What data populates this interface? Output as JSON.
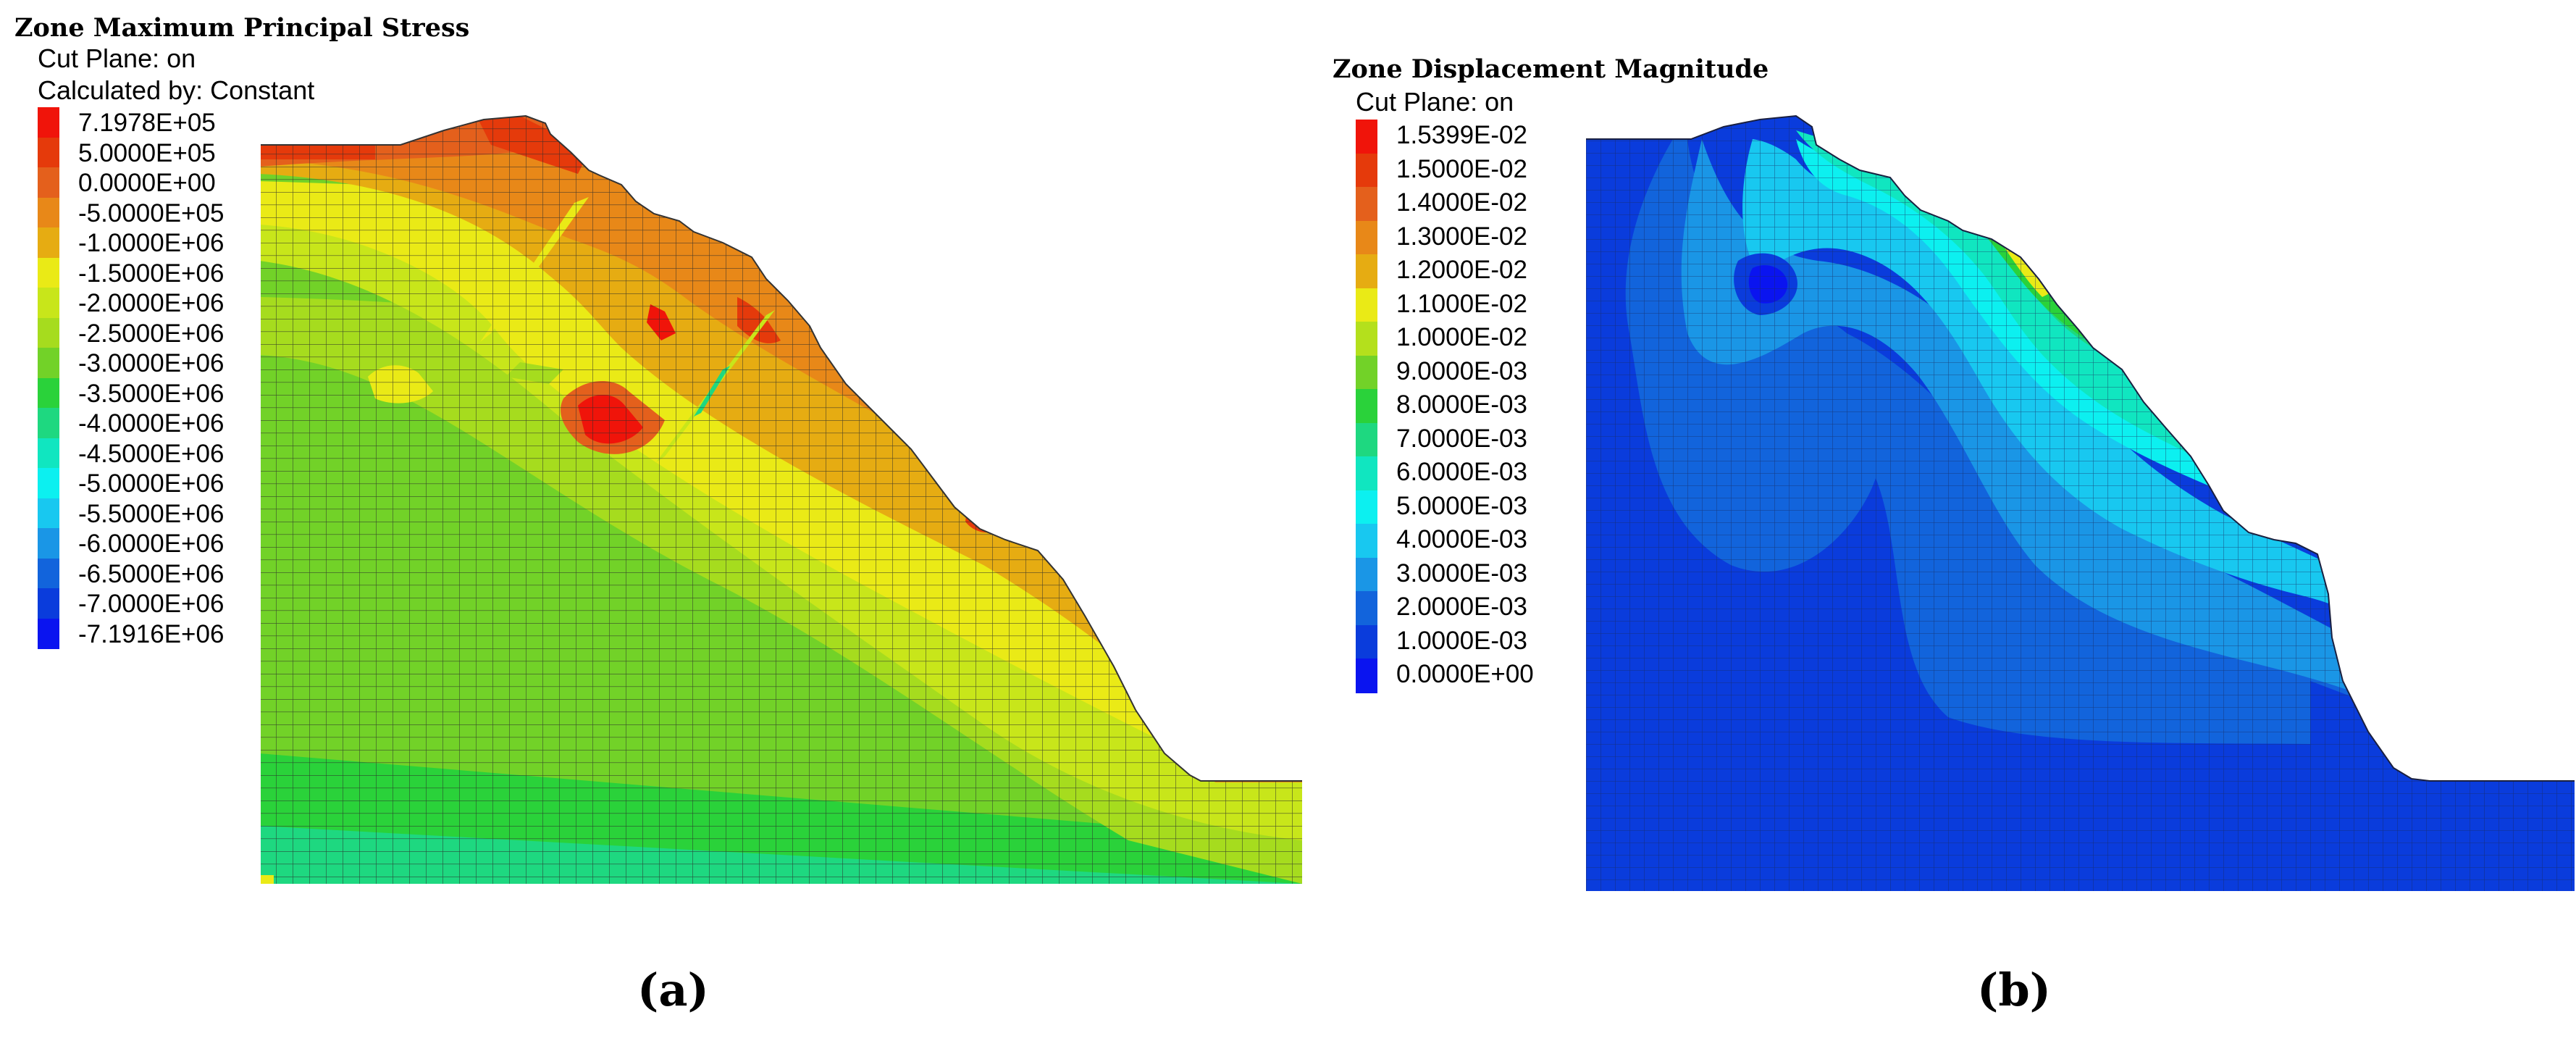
{
  "panel_a": {
    "title": "Zone Maximum Principal Stress",
    "subtitle_1": "Cut Plane: on",
    "subtitle_2": "Calculated by: Constant",
    "caption": "(a)",
    "legend": [
      {
        "label": "7.1978E+05",
        "color": "#f0140a"
      },
      {
        "label": "5.0000E+05",
        "color": "#e53a0b"
      },
      {
        "label": "0.0000E+00",
        "color": "#e4601c"
      },
      {
        "label": "-5.0000E+05",
        "color": "#e88818"
      },
      {
        "label": "-1.0000E+06",
        "color": "#e6ac12"
      },
      {
        "label": "-1.5000E+06",
        "color": "#eaea16"
      },
      {
        "label": "-2.0000E+06",
        "color": "#c8e61a"
      },
      {
        "label": "-2.5000E+06",
        "color": "#a6dc1e"
      },
      {
        "label": "-3.0000E+06",
        "color": "#72d228"
      },
      {
        "label": "-3.5000E+06",
        "color": "#2ad23a"
      },
      {
        "label": "-4.0000E+06",
        "color": "#1ed880"
      },
      {
        "label": "-4.5000E+06",
        "color": "#10e6c0"
      },
      {
        "label": "-5.0000E+06",
        "color": "#0cf0f0"
      },
      {
        "label": "-5.5000E+06",
        "color": "#18c8f0"
      },
      {
        "label": "-6.0000E+06",
        "color": "#1a96e6"
      },
      {
        "label": "-6.5000E+06",
        "color": "#1264dc"
      },
      {
        "label": "-7.0000E+06",
        "color": "#0a3cdc"
      },
      {
        "label": "-7.1916E+06",
        "color": "#0a14f0"
      }
    ]
  },
  "panel_b": {
    "title": "Zone Displacement Magnitude",
    "subtitle_1": "Cut Plane: on",
    "caption": "(b)",
    "legend": [
      {
        "label": "1.5399E-02",
        "color": "#f0140a"
      },
      {
        "label": "1.5000E-02",
        "color": "#e53a0b"
      },
      {
        "label": "1.4000E-02",
        "color": "#e4601c"
      },
      {
        "label": "1.3000E-02",
        "color": "#e88818"
      },
      {
        "label": "1.2000E-02",
        "color": "#e6ac12"
      },
      {
        "label": "1.1000E-02",
        "color": "#eaea16"
      },
      {
        "label": "1.0000E-02",
        "color": "#b4e01c"
      },
      {
        "label": "9.0000E-03",
        "color": "#72d228"
      },
      {
        "label": "8.0000E-03",
        "color": "#2ad23a"
      },
      {
        "label": "7.0000E-03",
        "color": "#1ed880"
      },
      {
        "label": "6.0000E-03",
        "color": "#10e6c0"
      },
      {
        "label": "5.0000E-03",
        "color": "#0cf0f0"
      },
      {
        "label": "4.0000E-03",
        "color": "#18c8f0"
      },
      {
        "label": "3.0000E-03",
        "color": "#1a96e6"
      },
      {
        "label": "2.0000E-03",
        "color": "#1264dc"
      },
      {
        "label": "1.0000E-03",
        "color": "#0a3cdc"
      },
      {
        "label": "0.0000E+00",
        "color": "#0a14f0"
      }
    ]
  }
}
